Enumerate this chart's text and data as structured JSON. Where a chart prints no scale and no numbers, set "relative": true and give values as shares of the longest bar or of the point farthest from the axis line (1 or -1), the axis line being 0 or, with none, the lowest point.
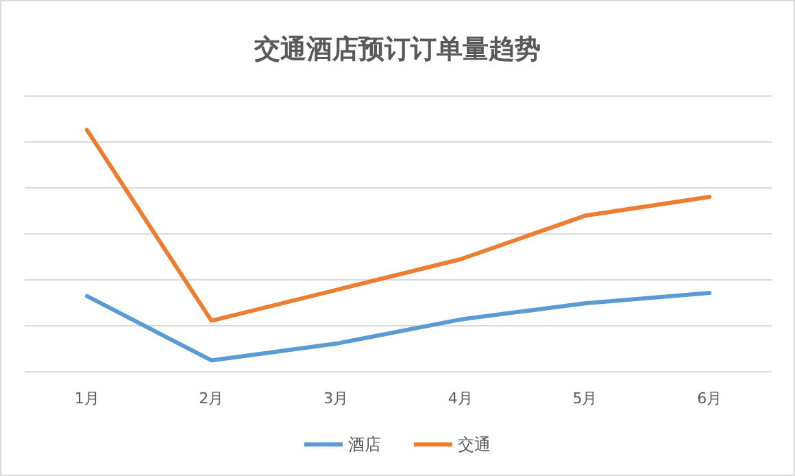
{
  "chart_data": {
    "type": "line",
    "title": "交通酒店预订订单量趋势",
    "relative": true,
    "grid": "y",
    "legend": "bottom",
    "line_style": "solid",
    "marker": "none",
    "categories": [
      "1月",
      "2月",
      "3月",
      "4月",
      "5月",
      "6月"
    ],
    "series": [
      {
        "name": "酒店",
        "color": "#5b9bd5",
        "values": [
          0.313,
          0.047,
          0.116,
          0.216,
          0.283,
          0.326
        ]
      },
      {
        "name": "交通",
        "color": "#ed7d31",
        "values": [
          1,
          0.211,
          0.338,
          0.465,
          0.645,
          0.723
        ]
      }
    ]
  }
}
